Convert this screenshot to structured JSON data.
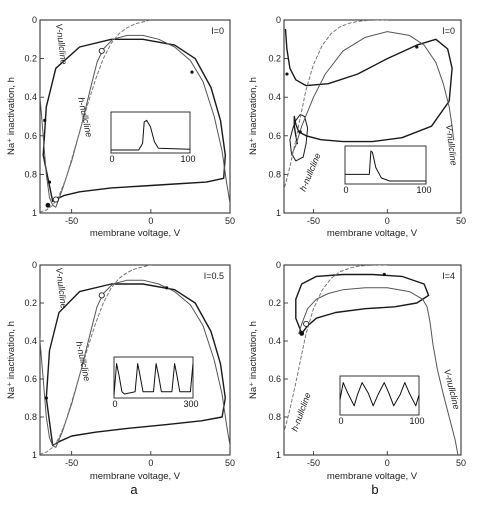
{
  "panel_labels": [
    "a",
    "b"
  ],
  "colors": {
    "trajectory": "#1a1a1a",
    "v_nullcline": "#555555",
    "h_nullcline": "#777777",
    "axes": "#222222"
  },
  "chart_data": [
    {
      "type": "line",
      "current_label": "I=0",
      "xlabel": "membrane voltage, V",
      "ylabel": "Na⁺ inactivation, h",
      "xlim": [
        -70,
        50
      ],
      "ylim": [
        0,
        1
      ],
      "y_inverted": true,
      "xticks": [
        -50,
        0,
        50
      ],
      "yticks": [
        0,
        0.2,
        0.4,
        0.6,
        0.8,
        1
      ],
      "annotations": [
        "V-nullcline",
        "h-nullcline"
      ],
      "series": [
        {
          "role": "trajectory",
          "style": "solid-thick",
          "x": [
            -62,
            -68,
            -66,
            -60,
            -45,
            -25,
            -5,
            15,
            28,
            38,
            44,
            47,
            46,
            35,
            15,
            -5,
            -25,
            -45,
            -55,
            -60,
            -62
          ],
          "y": [
            0.94,
            0.7,
            0.45,
            0.25,
            0.14,
            0.1,
            0.1,
            0.13,
            0.2,
            0.35,
            0.52,
            0.7,
            0.82,
            0.84,
            0.85,
            0.86,
            0.87,
            0.89,
            0.91,
            0.93,
            0.94
          ]
        },
        {
          "role": "v_nullcline",
          "style": "solid-thin",
          "x": [
            -74,
            -71,
            -68,
            -66,
            -64,
            -62,
            -60,
            -56,
            -50,
            -44,
            -38,
            -34,
            -30,
            -24,
            -15,
            -5,
            5,
            15,
            25,
            33,
            40,
            45,
            48,
            50,
            51
          ],
          "y": [
            0.0,
            0.3,
            0.6,
            0.8,
            0.92,
            0.96,
            0.97,
            0.88,
            0.73,
            0.55,
            0.35,
            0.22,
            0.15,
            0.1,
            0.08,
            0.08,
            0.1,
            0.14,
            0.21,
            0.32,
            0.5,
            0.68,
            0.85,
            0.95,
            1.0
          ]
        },
        {
          "role": "h_nullcline",
          "style": "dashed",
          "x": [
            -70,
            -66,
            -62,
            -58,
            -54,
            -50,
            -45,
            -40,
            -35,
            -30,
            -25,
            -20,
            -15,
            -10,
            -5,
            0
          ],
          "y": [
            0.995,
            0.985,
            0.96,
            0.91,
            0.83,
            0.72,
            0.58,
            0.44,
            0.31,
            0.2,
            0.12,
            0.07,
            0.04,
            0.02,
            0.01,
            0.0
          ]
        }
      ],
      "markers": [
        {
          "kind": "open-circle",
          "x": -31,
          "y": 0.16
        },
        {
          "kind": "open-circle",
          "x": -60,
          "y": 0.93
        },
        {
          "kind": "filled-dot",
          "x": -65,
          "y": 0.96
        },
        {
          "kind": "arrow",
          "x": -67,
          "y": 0.52
        },
        {
          "kind": "arrow",
          "x": 26,
          "y": 0.27
        },
        {
          "kind": "arrow",
          "x": -64,
          "y": 0.84
        }
      ],
      "inset": {
        "ticks": [
          "0",
          "100"
        ],
        "xlim": [
          0,
          100
        ],
        "x": [
          0,
          25,
          35,
          40,
          42,
          45,
          50,
          55,
          60,
          100
        ],
        "y": [
          0.0,
          0.0,
          0.0,
          0.2,
          0.85,
          0.9,
          0.7,
          0.25,
          0.05,
          0.02
        ]
      }
    },
    {
      "type": "line",
      "current_label": "I=0",
      "xlabel": "membrane voltage, V",
      "ylabel": "Na⁺ inactivation, h",
      "xlim": [
        -70,
        50
      ],
      "ylim": [
        0,
        1
      ],
      "y_inverted": true,
      "xticks": [
        -50,
        0,
        50
      ],
      "yticks": [
        0,
        0.2,
        0.4,
        0.6,
        0.8,
        1
      ],
      "annotations": [
        "V-nullcline",
        "h-nullcline"
      ],
      "series": [
        {
          "role": "trajectory",
          "style": "solid-thick",
          "x": [
            -69,
            -68,
            -66,
            -62,
            -55,
            -40,
            -20,
            0,
            20,
            33,
            41,
            44,
            42,
            30,
            10,
            -10,
            -30,
            -45,
            -55,
            -60,
            -62,
            -63,
            -63,
            -62,
            -61
          ],
          "y": [
            0.05,
            0.15,
            0.25,
            0.31,
            0.34,
            0.33,
            0.28,
            0.2,
            0.13,
            0.1,
            0.15,
            0.25,
            0.42,
            0.55,
            0.61,
            0.63,
            0.63,
            0.62,
            0.6,
            0.58,
            0.54,
            0.5,
            0.55,
            0.6,
            0.64
          ]
        },
        {
          "role": "trajectory",
          "style": "solid-thin",
          "x": [
            -62,
            -64,
            -66,
            -65,
            -62,
            -57,
            -55,
            -54,
            -56,
            -59,
            -62
          ],
          "y": [
            0.52,
            0.56,
            0.62,
            0.69,
            0.73,
            0.71,
            0.64,
            0.56,
            0.5,
            0.49,
            0.52
          ]
        },
        {
          "role": "v_nullcline",
          "style": "solid-thin",
          "x": [
            -65,
            -62,
            -58,
            -50,
            -42,
            -30,
            -15,
            0,
            15,
            25,
            33,
            38,
            42,
            44,
            45
          ],
          "y": [
            0.7,
            0.65,
            0.55,
            0.4,
            0.28,
            0.16,
            0.09,
            0.06,
            0.08,
            0.13,
            0.22,
            0.33,
            0.45,
            0.55,
            0.62
          ]
        },
        {
          "role": "h_nullcline",
          "style": "dashed",
          "x": [
            -75,
            -72,
            -69,
            -66,
            -62,
            -58,
            -55,
            -50,
            -44,
            -38,
            -32,
            -25,
            -20,
            -15,
            -10,
            -5,
            0
          ],
          "y": [
            0.97,
            0.92,
            0.85,
            0.76,
            0.62,
            0.47,
            0.36,
            0.23,
            0.13,
            0.07,
            0.035,
            0.015,
            0.007,
            0.003,
            0.001,
            0.0,
            0.0
          ]
        }
      ],
      "markers": [
        {
          "kind": "arrow",
          "x": -68,
          "y": 0.28
        },
        {
          "kind": "arrow",
          "x": 20,
          "y": 0.14
        },
        {
          "kind": "arrow",
          "x": -59,
          "y": 0.58
        }
      ],
      "inset": {
        "ticks": [
          "0",
          "100"
        ],
        "xlim": [
          0,
          100
        ],
        "x": [
          0,
          25,
          30,
          32,
          34,
          38,
          45,
          55,
          100
        ],
        "y": [
          0.22,
          0.22,
          0.22,
          1.0,
          0.95,
          0.45,
          0.1,
          0.0,
          0.0
        ]
      }
    },
    {
      "type": "line",
      "current_label": "I=0.5",
      "xlabel": "membrane voltage, V",
      "ylabel": "Na⁺ inactivation, h",
      "xlim": [
        -70,
        50
      ],
      "ylim": [
        0,
        1
      ],
      "y_inverted": true,
      "xticks": [
        -50,
        0,
        50
      ],
      "yticks": [
        0,
        0.2,
        0.4,
        0.6,
        0.8,
        1
      ],
      "annotations": [
        "V-nullcline",
        "h-nullcline"
      ],
      "series": [
        {
          "role": "trajectory",
          "style": "solid-thick",
          "x": [
            -62,
            -66,
            -64,
            -58,
            -45,
            -25,
            -5,
            15,
            28,
            38,
            44,
            47,
            45,
            32,
            10,
            -15,
            -35,
            -50,
            -58,
            -62
          ],
          "y": [
            0.95,
            0.7,
            0.45,
            0.25,
            0.14,
            0.1,
            0.1,
            0.13,
            0.2,
            0.35,
            0.52,
            0.7,
            0.8,
            0.82,
            0.84,
            0.86,
            0.88,
            0.9,
            0.93,
            0.95
          ]
        },
        {
          "role": "v_nullcline",
          "style": "solid-thin",
          "x": [
            -74,
            -71,
            -68,
            -66,
            -64,
            -62,
            -60,
            -56,
            -50,
            -44,
            -38,
            -34,
            -30,
            -24,
            -15,
            -5,
            5,
            15,
            25,
            33,
            40,
            45,
            48,
            50,
            51
          ],
          "y": [
            0.0,
            0.3,
            0.6,
            0.8,
            0.91,
            0.95,
            0.96,
            0.88,
            0.73,
            0.55,
            0.35,
            0.22,
            0.15,
            0.1,
            0.08,
            0.08,
            0.1,
            0.14,
            0.21,
            0.32,
            0.5,
            0.68,
            0.85,
            0.95,
            1.0
          ]
        },
        {
          "role": "h_nullcline",
          "style": "dashed",
          "x": [
            -70,
            -66,
            -62,
            -58,
            -54,
            -50,
            -45,
            -40,
            -35,
            -30,
            -25,
            -20,
            -15,
            -10,
            -5,
            0
          ],
          "y": [
            0.995,
            0.985,
            0.96,
            0.91,
            0.83,
            0.72,
            0.58,
            0.44,
            0.31,
            0.2,
            0.12,
            0.07,
            0.04,
            0.02,
            0.01,
            0.0
          ]
        }
      ],
      "markers": [
        {
          "kind": "open-circle",
          "x": -31,
          "y": 0.16
        },
        {
          "kind": "arrow",
          "x": -66,
          "y": 0.7
        },
        {
          "kind": "arrow",
          "x": 10,
          "y": 0.12
        }
      ],
      "inset": {
        "ticks": [
          "0",
          "300"
        ],
        "xlim": [
          0,
          300
        ],
        "x": [
          0,
          10,
          20,
          30,
          40,
          80,
          90,
          100,
          110,
          150,
          160,
          170,
          180,
          220,
          230,
          240,
          250,
          290,
          300
        ],
        "y": [
          0.0,
          0.95,
          0.55,
          0.1,
          0.03,
          0.1,
          0.95,
          0.55,
          0.1,
          0.1,
          0.95,
          0.55,
          0.1,
          0.1,
          0.95,
          0.55,
          0.1,
          0.1,
          0.95
        ]
      }
    },
    {
      "type": "line",
      "current_label": "I=4",
      "xlabel": "membrane voltage, V",
      "ylabel": "Na⁺ inactivation, h",
      "xlim": [
        -70,
        50
      ],
      "ylim": [
        0,
        1
      ],
      "y_inverted": true,
      "xticks": [
        -50,
        0,
        50
      ],
      "yticks": [
        0,
        0.2,
        0.4,
        0.6,
        0.8,
        1
      ],
      "annotations": [
        "V-nullcline",
        "h-nullcline"
      ],
      "series": [
        {
          "role": "trajectory",
          "style": "solid-thick",
          "x": [
            -58,
            -62,
            -62,
            -58,
            -48,
            -30,
            -10,
            10,
            25,
            28,
            20,
            5,
            -15,
            -35,
            -48,
            -54,
            -58
          ],
          "y": [
            0.36,
            0.28,
            0.18,
            0.1,
            0.06,
            0.05,
            0.05,
            0.06,
            0.1,
            0.16,
            0.2,
            0.22,
            0.23,
            0.25,
            0.28,
            0.32,
            0.36
          ]
        },
        {
          "role": "v_nullcline",
          "style": "solid-thin",
          "x": [
            -60,
            -58,
            -54,
            -48,
            -40,
            -30,
            -15,
            0,
            15,
            24,
            27,
            29,
            31,
            34,
            38,
            42,
            46,
            48
          ],
          "y": [
            0.36,
            0.31,
            0.23,
            0.18,
            0.15,
            0.13,
            0.12,
            0.12,
            0.14,
            0.18,
            0.22,
            0.3,
            0.42,
            0.55,
            0.68,
            0.8,
            0.92,
            1.0
          ]
        },
        {
          "role": "h_nullcline",
          "style": "dashed",
          "x": [
            -75,
            -72,
            -69,
            -66,
            -62,
            -58,
            -55,
            -50,
            -44,
            -38,
            -32,
            -25,
            -20,
            -15,
            -10,
            -5,
            0
          ],
          "y": [
            0.97,
            0.92,
            0.85,
            0.76,
            0.62,
            0.47,
            0.36,
            0.23,
            0.13,
            0.07,
            0.035,
            0.015,
            0.007,
            0.003,
            0.001,
            0.0,
            0.0
          ]
        }
      ],
      "markers": [
        {
          "kind": "open-circle",
          "x": -55,
          "y": 0.31
        },
        {
          "kind": "filled-dot",
          "x": -58,
          "y": 0.36
        },
        {
          "kind": "arrow",
          "x": -2,
          "y": 0.05
        }
      ],
      "inset": {
        "ticks": [
          "0",
          "100"
        ],
        "xlim": [
          0,
          100
        ],
        "x": [
          0,
          4,
          10,
          18,
          22,
          28,
          36,
          42,
          48,
          56,
          62,
          68,
          76,
          82,
          88,
          96,
          100
        ],
        "y": [
          0.4,
          0.95,
          0.6,
          0.2,
          0.55,
          0.95,
          0.6,
          0.2,
          0.55,
          0.95,
          0.6,
          0.2,
          0.55,
          0.95,
          0.6,
          0.2,
          0.55
        ]
      }
    }
  ]
}
